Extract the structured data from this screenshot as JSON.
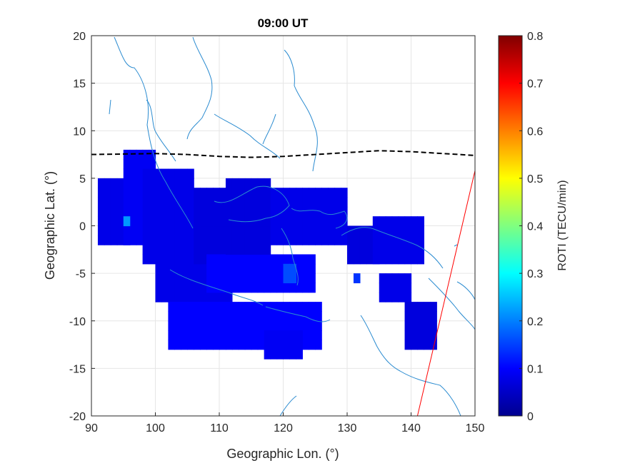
{
  "chart_data": {
    "type": "heatmap",
    "title": "09:00 UT",
    "xlabel": "Geographic Lon. (°)",
    "ylabel": "Geographic Lat. (°)",
    "xlim": [
      90,
      150
    ],
    "ylim": [
      -20,
      20
    ],
    "xticks": [
      "90",
      "100",
      "110",
      "120",
      "130",
      "140",
      "150"
    ],
    "yticks": [
      "20",
      "15",
      "10",
      "5",
      "0",
      "-5",
      "-10",
      "-15",
      "-20"
    ],
    "grid": true,
    "colorbar": {
      "label": "ROTI (TECU/min)",
      "range": [
        0,
        0.8
      ],
      "ticks": [
        "0.8",
        "0.7",
        "0.6",
        "0.5",
        "0.4",
        "0.3",
        "0.2",
        "0.1",
        "0"
      ],
      "colormap": "jet"
    },
    "roti_regions": [
      {
        "lon": [
          91,
          96
        ],
        "lat": [
          -2,
          5
        ],
        "roti": 0.08
      },
      {
        "lon": [
          95,
          100
        ],
        "lat": [
          -2,
          8
        ],
        "roti": 0.09
      },
      {
        "lon": [
          95,
          96
        ],
        "lat": [
          0,
          1
        ],
        "roti": 0.22
      },
      {
        "lon": [
          98,
          106
        ],
        "lat": [
          -4,
          6
        ],
        "roti": 0.08
      },
      {
        "lon": [
          100,
          112
        ],
        "lat": [
          -8,
          0
        ],
        "roti": 0.08
      },
      {
        "lon": [
          106,
          112
        ],
        "lat": [
          -4,
          4
        ],
        "roti": 0.07
      },
      {
        "lon": [
          108,
          125
        ],
        "lat": [
          -7,
          -3
        ],
        "roti": 0.1
      },
      {
        "lon": [
          111,
          118
        ],
        "lat": [
          -3,
          5
        ],
        "roti": 0.07
      },
      {
        "lon": [
          118,
          130
        ],
        "lat": [
          -2,
          4
        ],
        "roti": 0.08
      },
      {
        "lon": [
          120,
          122
        ],
        "lat": [
          -6,
          -4
        ],
        "roti": 0.16
      },
      {
        "lon": [
          102,
          126
        ],
        "lat": [
          -13,
          -8
        ],
        "roti": 0.1
      },
      {
        "lon": [
          117,
          123
        ],
        "lat": [
          -14,
          -11
        ],
        "roti": 0.09
      },
      {
        "lon": [
          130,
          135
        ],
        "lat": [
          -4,
          0
        ],
        "roti": 0.07
      },
      {
        "lon": [
          131,
          132
        ],
        "lat": [
          -6,
          -5
        ],
        "roti": 0.14
      },
      {
        "lon": [
          134,
          142
        ],
        "lat": [
          -4,
          1
        ],
        "roti": 0.08
      },
      {
        "lon": [
          135,
          140
        ],
        "lat": [
          -8,
          -5
        ],
        "roti": 0.08
      },
      {
        "lon": [
          139,
          144
        ],
        "lat": [
          -13,
          -8
        ],
        "roti": 0.07
      }
    ],
    "magnetic_equator": {
      "style": "black dashed",
      "lon": [
        90,
        100,
        105,
        110,
        115,
        120,
        125,
        130,
        135,
        140,
        145,
        150
      ],
      "lat": [
        7.5,
        7.6,
        7.5,
        7.3,
        7.2,
        7.3,
        7.5,
        7.7,
        7.9,
        7.8,
        7.6,
        7.4
      ]
    },
    "red_line": {
      "lon": [
        141,
        150
      ],
      "lat": [
        -20,
        5.8
      ]
    },
    "colors": {
      "coastline": "#2a8bd0",
      "equator": "#000000",
      "red_line": "#ff0000",
      "grid": "#e6e6e6"
    }
  }
}
